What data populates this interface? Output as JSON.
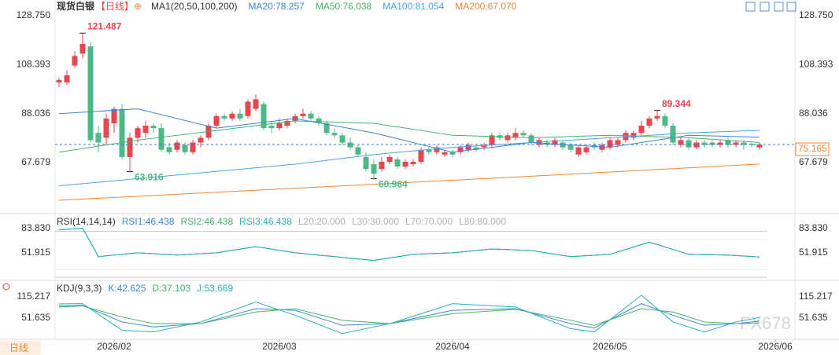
{
  "chart_data": {
    "type": "candlestick",
    "title": "现货白银",
    "period": "【日线】",
    "indicator": "MA1(20,50,100,200)",
    "up_color": "#e5464f",
    "down_color": "#4cb986",
    "xlim": [
      -0.5,
      93.5
    ],
    "xticks": [
      {
        "value": 7,
        "label": "2026/02"
      },
      {
        "value": 28,
        "label": "2026/03"
      },
      {
        "value": 50,
        "label": "2026/04"
      },
      {
        "value": 70,
        "label": "2026/05"
      },
      {
        "value": 91,
        "label": "2026/06"
      }
    ],
    "ylim": [
      47.1,
      132.0
    ],
    "yticks": [
      {
        "value": 128.75,
        "label": "128.750"
      },
      108.393,
      88.036,
      67.679
    ],
    "candles": [
      [
        101,
        103,
        99,
        102
      ],
      [
        101,
        106,
        100,
        104
      ],
      [
        108,
        114,
        107,
        112
      ],
      [
        113,
        121.487,
        111,
        117
      ],
      [
        116,
        118,
        76,
        77
      ],
      [
        80,
        83,
        72,
        76
      ],
      [
        78,
        88,
        75,
        86
      ],
      [
        84,
        91,
        80,
        90
      ],
      [
        90,
        92,
        69,
        70
      ],
      [
        70,
        80,
        63.916,
        78
      ],
      [
        78,
        83,
        76,
        82
      ],
      [
        80,
        85,
        78,
        83
      ],
      [
        83,
        84,
        80,
        82
      ],
      [
        82,
        84,
        72,
        73
      ],
      [
        74,
        76,
        71,
        72
      ],
      [
        73,
        77,
        72,
        76
      ],
      [
        75,
        76,
        71,
        72
      ],
      [
        72,
        77,
        71,
        76
      ],
      [
        76,
        79,
        74,
        78
      ],
      [
        78,
        84,
        77,
        83
      ],
      [
        83,
        88,
        82,
        87
      ],
      [
        87,
        88,
        85,
        86
      ],
      [
        86,
        89,
        85,
        88
      ],
      [
        88,
        90,
        85,
        86
      ],
      [
        87,
        94,
        86,
        93
      ],
      [
        90,
        96,
        89,
        94
      ],
      [
        92,
        93,
        81,
        82
      ],
      [
        83,
        85,
        80,
        82
      ],
      [
        82,
        86,
        81,
        84
      ],
      [
        83,
        86,
        82,
        85
      ],
      [
        85,
        88,
        84,
        87
      ],
      [
        87,
        90,
        86,
        88
      ],
      [
        88,
        89,
        85,
        86
      ],
      [
        86,
        87,
        83,
        84
      ],
      [
        84,
        85,
        79,
        80
      ],
      [
        80,
        82,
        78,
        79
      ],
      [
        79,
        80,
        75,
        76
      ],
      [
        76,
        78,
        73,
        74
      ],
      [
        74,
        75,
        70,
        71
      ],
      [
        70,
        72,
        64,
        65
      ],
      [
        67,
        69,
        60.964,
        63
      ],
      [
        65,
        70,
        64,
        68
      ],
      [
        68,
        71,
        67,
        70
      ],
      [
        69,
        70,
        65,
        66
      ],
      [
        66,
        69,
        65,
        68
      ],
      [
        67,
        69,
        66,
        68
      ],
      [
        68,
        74,
        67,
        73
      ],
      [
        73,
        74,
        71,
        72
      ],
      [
        72,
        75,
        71,
        74
      ],
      [
        71,
        73,
        70,
        72
      ],
      [
        72,
        73,
        70,
        71
      ],
      [
        72,
        75,
        71,
        74
      ],
      [
        73,
        76,
        72,
        75
      ],
      [
        74,
        75,
        72,
        73
      ],
      [
        74,
        76,
        73,
        75
      ],
      [
        75,
        80,
        74,
        79
      ],
      [
        79,
        80,
        77,
        78
      ],
      [
        77,
        80,
        76,
        79
      ],
      [
        78,
        82,
        77,
        80
      ],
      [
        80,
        81,
        78,
        79
      ],
      [
        79,
        80,
        75,
        76
      ],
      [
        75,
        78,
        74,
        77
      ],
      [
        76,
        77,
        74,
        75
      ],
      [
        75,
        78,
        74,
        77
      ],
      [
        76,
        77,
        73,
        74
      ],
      [
        75,
        76,
        72,
        73
      ],
      [
        71,
        75,
        70,
        74
      ],
      [
        72,
        75,
        71,
        74
      ],
      [
        75,
        76,
        73,
        74
      ],
      [
        73,
        76,
        72,
        75
      ],
      [
        74,
        78,
        73,
        77
      ],
      [
        75,
        78,
        74,
        77
      ],
      [
        77,
        81,
        76,
        80
      ],
      [
        78,
        81,
        77,
        80
      ],
      [
        80,
        85,
        79,
        83
      ],
      [
        83,
        87,
        82,
        86
      ],
      [
        86,
        89.344,
        85,
        87
      ],
      [
        87,
        88,
        82,
        83
      ],
      [
        83,
        84,
        75,
        76
      ],
      [
        75,
        78,
        74,
        77
      ],
      [
        77,
        78,
        73,
        74
      ],
      [
        74,
        77,
        73,
        76
      ],
      [
        76,
        77,
        74,
        75
      ],
      [
        76,
        77,
        74,
        75
      ],
      [
        75,
        77,
        74,
        76
      ],
      [
        77,
        78,
        74,
        75
      ],
      [
        75,
        77,
        74,
        76
      ],
      [
        76,
        77,
        73,
        75
      ],
      [
        75.5,
        76,
        74,
        75
      ],
      [
        74,
        76,
        73,
        75.165
      ]
    ],
    "annotations": [
      {
        "label": "121.487",
        "value": 121.487,
        "kind": "high"
      },
      {
        "label": "63.916",
        "value": 63.916,
        "kind": "low"
      },
      {
        "label": "60.964",
        "value": 60.964,
        "kind": "low"
      },
      {
        "label": "89.344",
        "value": 89.344,
        "kind": "high"
      }
    ],
    "series": [
      {
        "name": "MA20:78.257",
        "color": "#3b86d6",
        "x": [
          0,
          10,
          20,
          30,
          40,
          50,
          60,
          70,
          80,
          89
        ],
        "values": [
          88,
          90,
          82,
          86,
          80,
          72,
          76,
          74,
          79,
          78.257
        ]
      },
      {
        "name": "MA50:76.038",
        "color": "#45b36b",
        "x": [
          0,
          10,
          20,
          30,
          40,
          50,
          60,
          70,
          80,
          89
        ],
        "values": [
          72,
          77,
          81,
          85,
          84,
          79,
          78,
          79,
          78,
          76.038
        ]
      },
      {
        "name": "MA100:81.054",
        "color": "#4aa3e0",
        "x": [
          0,
          10,
          20,
          30,
          40,
          50,
          60,
          70,
          80,
          89
        ],
        "values": [
          58,
          61,
          64,
          67,
          71,
          74,
          76,
          78,
          80,
          81.054
        ]
      },
      {
        "name": "MA200:67.070",
        "color": "#e8873a",
        "x": [
          0,
          30,
          60,
          89
        ],
        "values": [
          52,
          57,
          62,
          67.07
        ]
      }
    ],
    "rsi": {
      "title": "RSI(14,14,14)",
      "ylim": [
        18,
        97
      ],
      "yticks": [
        {
          "value": 83.83,
          "label": "83.830"
        },
        51.915
      ],
      "levels": [
        {
          "value": 20,
          "label": "L20:20.000"
        },
        {
          "value": 30,
          "label": "L30:30.000"
        },
        {
          "value": 70,
          "label": "L70:70.000"
        },
        {
          "value": 80,
          "label": "L80:80.000"
        }
      ],
      "series": [
        {
          "name": "RSI1:46.438",
          "color": "#3b86d6",
          "x": [
            0,
            3,
            5,
            10,
            15,
            20,
            25,
            30,
            35,
            40,
            45,
            50,
            55,
            60,
            65,
            70,
            75,
            80,
            85,
            89
          ],
          "values": [
            82,
            84,
            47,
            52,
            49,
            52,
            60,
            52,
            47,
            42,
            50,
            52,
            57,
            55,
            47,
            50,
            66,
            50,
            49,
            46.438
          ]
        },
        {
          "name": "RSI2:46.438",
          "color": "#45b36b",
          "x": [
            0,
            3,
            5,
            10,
            15,
            20,
            25,
            30,
            35,
            40,
            45,
            50,
            55,
            60,
            65,
            70,
            75,
            80,
            85,
            89
          ],
          "values": [
            82,
            84,
            47,
            52,
            49,
            52,
            60,
            52,
            47,
            42,
            50,
            52,
            57,
            55,
            47,
            50,
            66,
            50,
            49,
            46.438
          ]
        },
        {
          "name": "RSI3:46.438",
          "color": "#2bb2b8",
          "x": [
            0,
            3,
            5,
            10,
            15,
            20,
            25,
            30,
            35,
            40,
            45,
            50,
            55,
            60,
            65,
            70,
            75,
            80,
            85,
            89
          ],
          "values": [
            82,
            84,
            47,
            52,
            49,
            52,
            60,
            52,
            47,
            42,
            50,
            52,
            57,
            55,
            47,
            50,
            66,
            50,
            49,
            46.438
          ]
        }
      ]
    },
    "kdj": {
      "title": "KDJ(9,3,3)",
      "ylim": [
        -12,
        153
      ],
      "yticks": [
        115.217,
        51.635
      ],
      "series": [
        {
          "name": "K:42.625",
          "color": "#3b86d6",
          "x": [
            0,
            3,
            8,
            12,
            18,
            25,
            30,
            36,
            42,
            50,
            58,
            65,
            68,
            74,
            78,
            82,
            86,
            89
          ],
          "values": [
            88,
            90,
            40,
            25,
            35,
            80,
            75,
            30,
            35,
            75,
            80,
            35,
            22,
            95,
            60,
            30,
            35,
            42.625
          ]
        },
        {
          "name": "D:37.103",
          "color": "#45b36b",
          "x": [
            0,
            3,
            8,
            12,
            18,
            25,
            30,
            36,
            42,
            50,
            58,
            65,
            68,
            74,
            78,
            82,
            86,
            89
          ],
          "values": [
            85,
            88,
            55,
            35,
            35,
            70,
            80,
            45,
            35,
            65,
            78,
            45,
            30,
            80,
            70,
            40,
            35,
            37.103
          ]
        },
        {
          "name": "J:53.669",
          "color": "#2bb2b8",
          "x": [
            0,
            3,
            8,
            12,
            18,
            25,
            30,
            36,
            42,
            50,
            58,
            65,
            68,
            74,
            78,
            82,
            86,
            89
          ],
          "values": [
            94,
            95,
            15,
            10,
            40,
            100,
            60,
            5,
            35,
            95,
            85,
            20,
            10,
            120,
            40,
            10,
            40,
            53.669
          ]
        }
      ]
    },
    "tab": "日线",
    "watermark": "FX678"
  }
}
